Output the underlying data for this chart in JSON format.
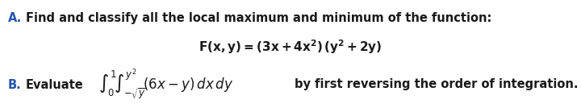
{
  "background_color": "#ffffff",
  "label_color": "#2255aa",
  "text_color": "#1a1a1a",
  "fig_width": 7.2,
  "fig_height": 1.29,
  "dpi": 100,
  "line_A_label": "A.",
  "line_A_text": "Find and classify all the local maximum and minimum of the function:",
  "line_A_eq": "F(x,y) = (3x + 4x$^2$) (y$^2$ + 2y)",
  "line_B_label": "B.",
  "line_B_word": "Evaluate",
  "line_B_suffix": "by first reversing the order of integration.",
  "fontsize_main": 10.5,
  "fontsize_eq": 10.5
}
